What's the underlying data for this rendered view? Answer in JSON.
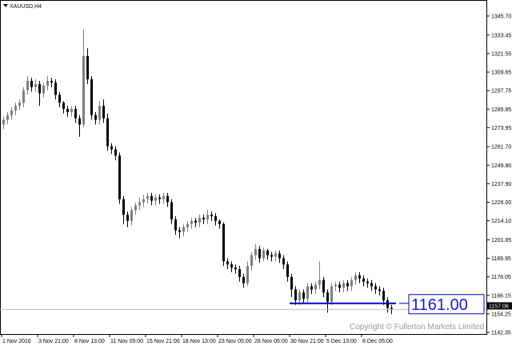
{
  "window": {
    "title": "XAUUSD,H4",
    "menu_icon": "triangle-down-icon"
  },
  "copyright": "Copyright © Fullerton Markets Limited",
  "colors": {
    "bull": "#7f7f7f",
    "bear": "#000000",
    "level_line": "#0000c8",
    "level_text": "#1a1acc",
    "price_line": "#c0c0c0",
    "price_tag_bg": "#000000"
  },
  "chart_data": {
    "type": "candlestick",
    "symbol": "XAUUSD",
    "timeframe": "H4",
    "ylim": [
      1142.35,
      1345.7
    ],
    "y_ticks": [
      "1345.70",
      "1333.45",
      "1321.55",
      "1309.65",
      "1297.75",
      "1285.85",
      "1273.95",
      "1261.70",
      "1249.80",
      "1237.90",
      "1226.00",
      "1214.10",
      "1201.85",
      "1189.95",
      "1178.05",
      "1166.15",
      "1154.25",
      "1142.35"
    ],
    "x_ticks": [
      "1 Nov 2016",
      "3 Nov 21:00",
      "8 Nov 13:00",
      "11 Nov 05:00",
      "15 Nov 21:00",
      "18 Nov 13:00",
      "23 Nov 05:00",
      "28 Nov 05:00",
      "30 Nov 21:00",
      "5 Dec 13:00",
      "8 Dec 05:00"
    ],
    "current_price": "1157.06",
    "level": {
      "value": 1161.0,
      "label": "1161.00"
    },
    "first_open": 1276,
    "close": [
      1279,
      1282,
      1285,
      1288,
      1290,
      1298,
      1304,
      1300,
      1302,
      1296,
      1301,
      1304,
      1303,
      1295,
      1290,
      1286,
      1284,
      1286,
      1280,
      1276,
      1320,
      1305,
      1282,
      1279,
      1288,
      1280,
      1262,
      1260,
      1256,
      1228,
      1218,
      1214,
      1221,
      1224,
      1226,
      1228,
      1230,
      1227,
      1229,
      1228,
      1230,
      1226,
      1215,
      1208,
      1207,
      1210,
      1212,
      1214,
      1213,
      1216,
      1215,
      1218,
      1217,
      1214,
      1212,
      1188,
      1186,
      1184,
      1183,
      1178,
      1174,
      1185,
      1192,
      1196,
      1190,
      1195,
      1192,
      1191,
      1193,
      1190,
      1186,
      1178,
      1170,
      1163,
      1168,
      1164,
      1172,
      1170,
      1173,
      1176,
      1168,
      1162,
      1172,
      1173,
      1171,
      1174,
      1172,
      1176,
      1179,
      1177,
      1175,
      1174,
      1172,
      1170,
      1169,
      1163,
      1158,
      1157.06
    ],
    "high": [
      1281,
      1284,
      1287,
      1290,
      1292,
      1300,
      1307,
      1306,
      1305,
      1304,
      1303,
      1307,
      1306,
      1305,
      1297,
      1291,
      1288,
      1288,
      1288,
      1282,
      1337,
      1325,
      1307,
      1284,
      1291,
      1292,
      1283,
      1264,
      1262,
      1258,
      1230,
      1220,
      1223,
      1226,
      1229,
      1231,
      1232,
      1232,
      1231,
      1231,
      1232,
      1232,
      1228,
      1217,
      1210,
      1212,
      1214,
      1216,
      1216,
      1218,
      1218,
      1221,
      1220,
      1219,
      1215,
      1213,
      1190,
      1188,
      1186,
      1185,
      1180,
      1188,
      1194,
      1199,
      1198,
      1197,
      1196,
      1194,
      1195,
      1195,
      1192,
      1188,
      1180,
      1172,
      1170,
      1170,
      1174,
      1174,
      1175,
      1188,
      1178,
      1170,
      1174,
      1175,
      1175,
      1176,
      1176,
      1178,
      1181,
      1181,
      1179,
      1177,
      1176,
      1174,
      1172,
      1171,
      1165,
      1160
    ],
    "low": [
      1273,
      1276,
      1279,
      1282,
      1285,
      1287,
      1295,
      1297,
      1297,
      1288,
      1293,
      1298,
      1300,
      1292,
      1287,
      1283,
      1281,
      1281,
      1277,
      1268,
      1274,
      1302,
      1279,
      1276,
      1276,
      1277,
      1259,
      1257,
      1253,
      1225,
      1212,
      1210,
      1211,
      1218,
      1221,
      1223,
      1225,
      1224,
      1224,
      1225,
      1225,
      1223,
      1212,
      1205,
      1203,
      1204,
      1207,
      1209,
      1210,
      1210,
      1212,
      1212,
      1214,
      1211,
      1209,
      1185,
      1183,
      1181,
      1180,
      1175,
      1171,
      1172,
      1182,
      1189,
      1187,
      1188,
      1189,
      1188,
      1188,
      1187,
      1183,
      1175,
      1165,
      1160,
      1160,
      1161,
      1161,
      1167,
      1167,
      1170,
      1165,
      1155,
      1160,
      1169,
      1168,
      1168,
      1169,
      1169,
      1173,
      1174,
      1172,
      1171,
      1169,
      1167,
      1166,
      1160,
      1155,
      1154
    ]
  }
}
